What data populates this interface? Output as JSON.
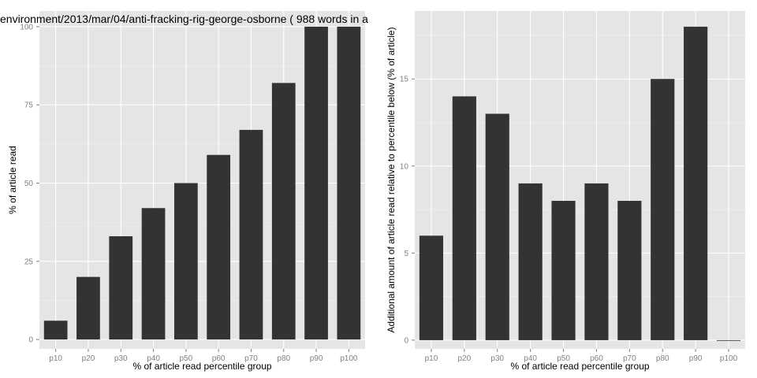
{
  "chart_data": [
    {
      "type": "bar",
      "title": "environment/2013/mar/04/anti-fracking-rig-george-osborne ( 988 words in a",
      "xlabel": "% of article read percentile group",
      "ylabel": "% of article read",
      "categories": [
        "p10",
        "p20",
        "p30",
        "p40",
        "p50",
        "p60",
        "p70",
        "p80",
        "p90",
        "p100"
      ],
      "values": [
        6,
        20,
        33,
        42,
        50,
        59,
        67,
        82,
        100,
        100
      ],
      "ylim": [
        -3,
        105
      ],
      "yticks": [
        0,
        25,
        50,
        75,
        100
      ],
      "grid": true,
      "bar_color": "#333333",
      "panel_color": "#e5e5e5"
    },
    {
      "type": "bar",
      "title": "",
      "xlabel": "% of article read percentile group",
      "ylabel": "Additional amount of article read relative to percentile below (% of article)",
      "categories": [
        "p10",
        "p20",
        "p30",
        "p40",
        "p50",
        "p60",
        "p70",
        "p80",
        "p90",
        "p100"
      ],
      "values": [
        6,
        14,
        13,
        9,
        8,
        9,
        8,
        15,
        18,
        0
      ],
      "ylim": [
        -0.5,
        18.9
      ],
      "yticks": [
        0,
        5,
        10,
        15
      ],
      "grid": true,
      "bar_color": "#333333",
      "panel_color": "#e5e5e5"
    }
  ]
}
